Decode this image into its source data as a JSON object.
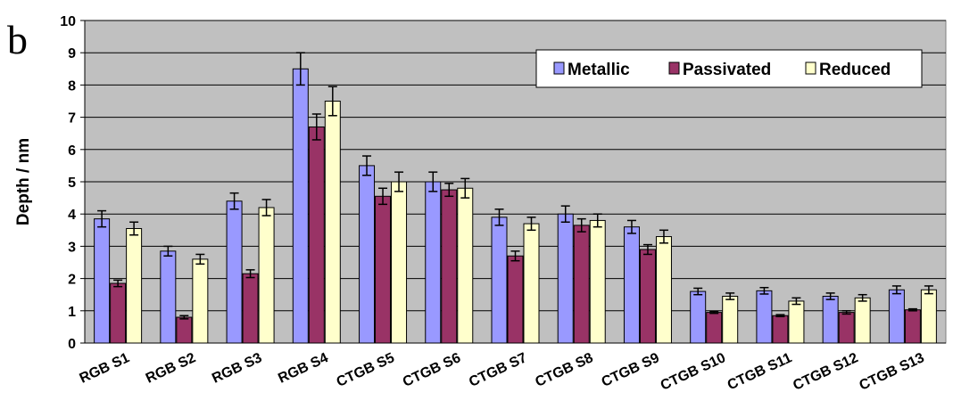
{
  "panel_label": "b",
  "chart_data": {
    "type": "bar",
    "title": "",
    "xlabel": "",
    "ylabel": "Depth / nm",
    "ylim": [
      0,
      10
    ],
    "yticks": [
      "0",
      "1",
      "2",
      "3",
      "4",
      "5",
      "6",
      "7",
      "8",
      "9",
      "10"
    ],
    "grid": true,
    "legend_position": "top-right",
    "categories": [
      "RGB S1",
      "RGB S2",
      "RGB S3",
      "RGB S4",
      "CTGB S5",
      "CTGB S6",
      "CTGB S7",
      "CTGB S8",
      "CTGB S9",
      "CTGB S10",
      "CTGB S11",
      "CTGB S12",
      "CTGB S13"
    ],
    "series": [
      {
        "name": "Metallic",
        "color": "#9999ff",
        "values": [
          3.85,
          2.85,
          4.4,
          8.5,
          5.5,
          5.0,
          3.9,
          4.0,
          3.6,
          1.6,
          1.62,
          1.45,
          1.65
        ],
        "errors": [
          0.25,
          0.15,
          0.25,
          0.5,
          0.3,
          0.3,
          0.25,
          0.25,
          0.2,
          0.1,
          0.1,
          0.1,
          0.12
        ]
      },
      {
        "name": "Passivated",
        "color": "#993366",
        "values": [
          1.85,
          0.8,
          2.15,
          6.7,
          4.55,
          4.75,
          2.7,
          3.65,
          2.9,
          0.95,
          0.85,
          0.95,
          1.03
        ],
        "errors": [
          0.1,
          0.05,
          0.12,
          0.4,
          0.25,
          0.2,
          0.15,
          0.2,
          0.15,
          0.03,
          0.03,
          0.05,
          0.03
        ]
      },
      {
        "name": "Reduced",
        "color": "#ffffcc",
        "values": [
          3.55,
          2.6,
          4.2,
          7.5,
          5.0,
          4.8,
          3.7,
          3.8,
          3.3,
          1.45,
          1.3,
          1.4,
          1.65
        ],
        "errors": [
          0.2,
          0.15,
          0.25,
          0.45,
          0.3,
          0.3,
          0.2,
          0.2,
          0.2,
          0.1,
          0.1,
          0.1,
          0.12
        ]
      }
    ]
  }
}
